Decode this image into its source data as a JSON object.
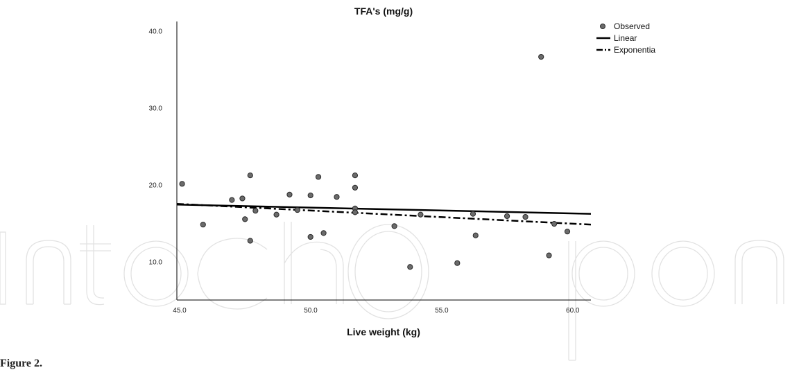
{
  "figure": {
    "caption": "Figure 2."
  },
  "watermark": {
    "text": "IntechOpen"
  },
  "colors": {
    "point_fill": "#6b6b6b",
    "point_stroke": "#2a2a2a",
    "line": "#000000",
    "axis": "#000000",
    "watermark": "#e2e2e2"
  },
  "chart_data": {
    "type": "scatter",
    "title": "TFA's (mg/g)",
    "xlabel": "Live weight (kg)",
    "ylabel": "",
    "xlim": [
      45.0,
      60.8
    ],
    "ylim": [
      5.0,
      41.2
    ],
    "x_ticks": [
      45.0,
      50.0,
      55.0,
      60.0
    ],
    "x_tick_labels": [
      "45.0",
      "50.0",
      "55.0",
      "60.0"
    ],
    "y_ticks": [
      10.0,
      20.0,
      30.0,
      40.0
    ],
    "y_tick_labels": [
      "10.0",
      "20.0",
      "30.0",
      "40.0"
    ],
    "grid": false,
    "legend_position": "top-right",
    "legend": [
      "Observed",
      "Linear",
      "Exponentia"
    ],
    "series": [
      {
        "name": "Observed",
        "kind": "points",
        "x": [
          45.2,
          46.0,
          47.1,
          47.5,
          47.6,
          47.8,
          47.8,
          48.0,
          48.8,
          49.3,
          49.6,
          50.1,
          50.1,
          50.4,
          50.6,
          51.1,
          51.8,
          51.8,
          51.8,
          51.8,
          53.3,
          53.9,
          54.3,
          55.7,
          56.3,
          56.4,
          57.6,
          58.3,
          58.9,
          59.2,
          59.4,
          59.9
        ],
        "y": [
          20.1,
          14.8,
          18.0,
          18.2,
          15.5,
          21.2,
          12.7,
          16.6,
          16.1,
          18.7,
          16.7,
          18.6,
          13.2,
          21.0,
          13.7,
          18.4,
          21.2,
          19.6,
          16.9,
          16.4,
          14.6,
          9.3,
          16.1,
          9.8,
          16.2,
          13.4,
          15.9,
          15.8,
          36.6,
          10.8,
          14.9,
          13.9
        ]
      },
      {
        "name": "Linear",
        "kind": "line",
        "dash": "solid",
        "x": [
          45.0,
          60.8
        ],
        "y": [
          17.4,
          16.2
        ]
      },
      {
        "name": "Exponentia",
        "kind": "line",
        "dash": "dashdot",
        "x": [
          45.0,
          60.8
        ],
        "y": [
          17.5,
          14.8
        ]
      }
    ]
  }
}
